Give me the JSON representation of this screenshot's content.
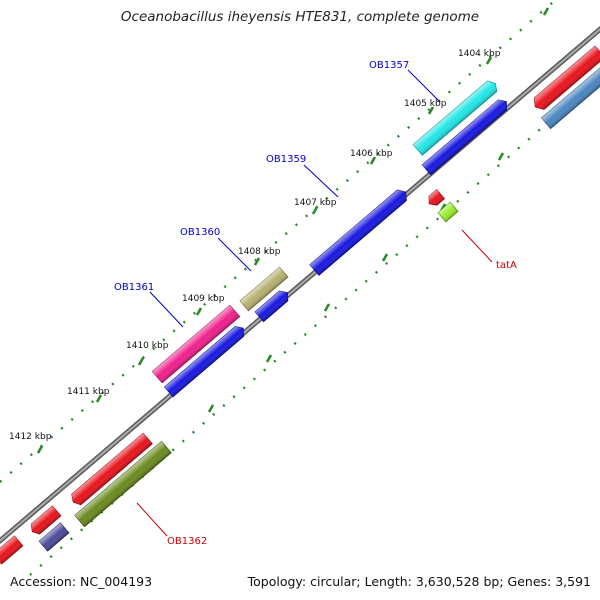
{
  "title": "Oceanobacillus iheyensis HTE831, complete genome",
  "footer": {
    "accession": "Accession: NC_004193",
    "stats": "Topology: circular; Length: 3,630,528 bp; Genes: 3,591"
  },
  "tick_labels": [
    "1404 kbp",
    "1405 kbp",
    "1406 kbp",
    "1407 kbp",
    "1408 kbp",
    "1409 kbp",
    "1410 kbp",
    "1411 kbp",
    "1412 kbp"
  ],
  "gene_labels": [
    {
      "text": "OB1357",
      "color": "#0000cc"
    },
    {
      "text": "OB1359",
      "color": "#0000cc"
    },
    {
      "text": "OB1360",
      "color": "#0000cc"
    },
    {
      "text": "OB1361",
      "color": "#0000cc"
    },
    {
      "text": "OB1362",
      "color": "#cc0000"
    },
    {
      "text": "tatA",
      "color": "#cc0000"
    }
  ],
  "colors": {
    "backbone": "#888888",
    "ticks": "#2a8a2a",
    "red": "#e8141c",
    "cyan": "#22e6e6",
    "blue": "#1818e0",
    "khaki": "#b8b070",
    "magenta": "#f0208c",
    "olive": "#6a8a1e",
    "slate": "#4a4a9a",
    "steel": "#4a86c0",
    "lime": "#9aec30"
  }
}
